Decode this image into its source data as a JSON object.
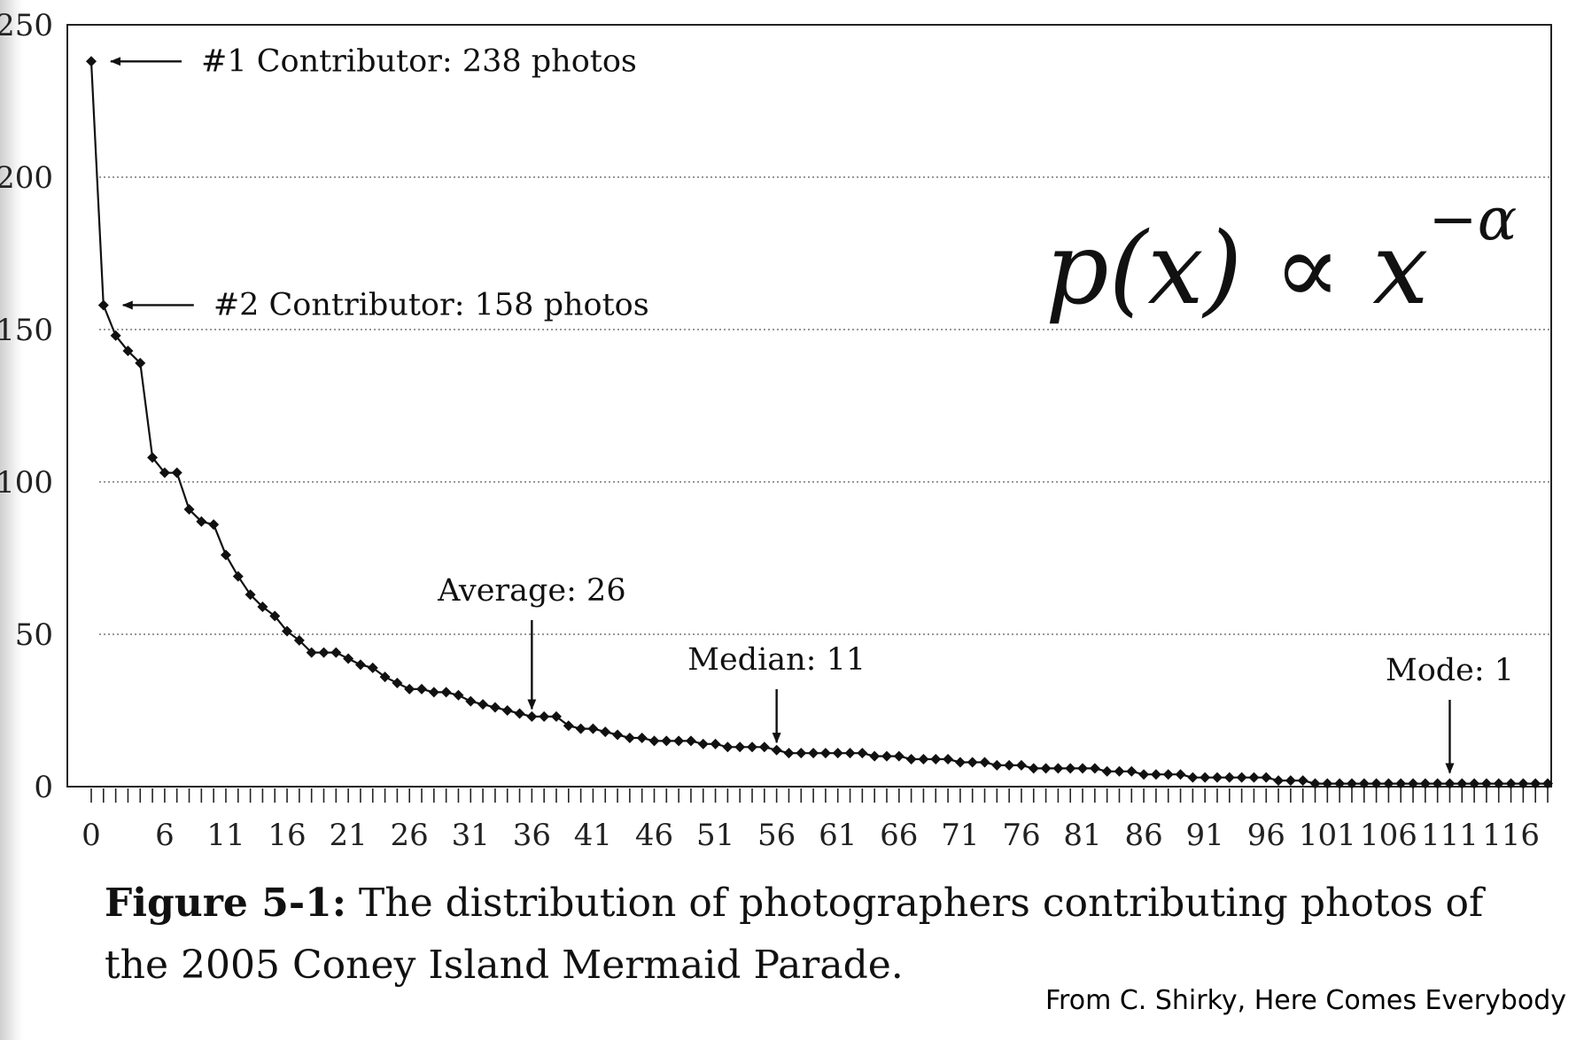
{
  "chart_data": {
    "type": "line",
    "xlim": [
      0,
      119
    ],
    "ylim": [
      0,
      250
    ],
    "x_tick_labels": [
      "0",
      "6",
      "11",
      "16",
      "21",
      "26",
      "31",
      "36",
      "41",
      "46",
      "51",
      "56",
      "61",
      "66",
      "71",
      "76",
      "81",
      "86",
      "91",
      "96",
      "101",
      "106",
      "111",
      "116"
    ],
    "y_tick_labels": [
      "0",
      "50",
      "100",
      "150",
      "200",
      "250"
    ],
    "grid": "horizontal dotted",
    "marker": "diamond",
    "series": [
      {
        "values": [
          238,
          158,
          148,
          143,
          139,
          108,
          103,
          103,
          91,
          87,
          86,
          76,
          69,
          63,
          59,
          56,
          51,
          48,
          44,
          44,
          44,
          42,
          40,
          39,
          36,
          34,
          32,
          32,
          31,
          31,
          30,
          28,
          27,
          26,
          25,
          24,
          23,
          23,
          23,
          20,
          19,
          19,
          18,
          17,
          16,
          16,
          15,
          15,
          15,
          15,
          14,
          14,
          13,
          13,
          13,
          13,
          12,
          11,
          11,
          11,
          11,
          11,
          11,
          11,
          10,
          10,
          10,
          9,
          9,
          9,
          9,
          8,
          8,
          8,
          7,
          7,
          7,
          6,
          6,
          6,
          6,
          6,
          6,
          5,
          5,
          5,
          4,
          4,
          4,
          4,
          3,
          3,
          3,
          3,
          3,
          3,
          3,
          2,
          2,
          2,
          1,
          1,
          1,
          1,
          1,
          1,
          1,
          1,
          1,
          1,
          1,
          1,
          1,
          1,
          1,
          1,
          1,
          1,
          1,
          1
        ]
      }
    ],
    "annotations": [
      {
        "text": "#1 Contributor: 238 photos",
        "x": 0,
        "y": 238,
        "arrow": "left"
      },
      {
        "text": "#2 Contributor: 158 photos",
        "x": 1,
        "y": 158,
        "arrow": "left"
      },
      {
        "text": "Average: 26",
        "x": 36,
        "y": 22,
        "arrow": "down"
      },
      {
        "text": "Median: 11",
        "x": 56,
        "y": 11,
        "arrow": "down"
      },
      {
        "text": "Mode: 1",
        "x": 111,
        "y": 1,
        "arrow": "down"
      }
    ]
  },
  "formula": {
    "base": "p(x) ∝ x",
    "exponent": "−α"
  },
  "caption": {
    "label": "Figure 5-1:",
    "text": " The distribution of photographers contributing photos of the 2005 Coney Island Mermaid Parade."
  },
  "credit": "From C. Shirky, Here Comes Everybody"
}
